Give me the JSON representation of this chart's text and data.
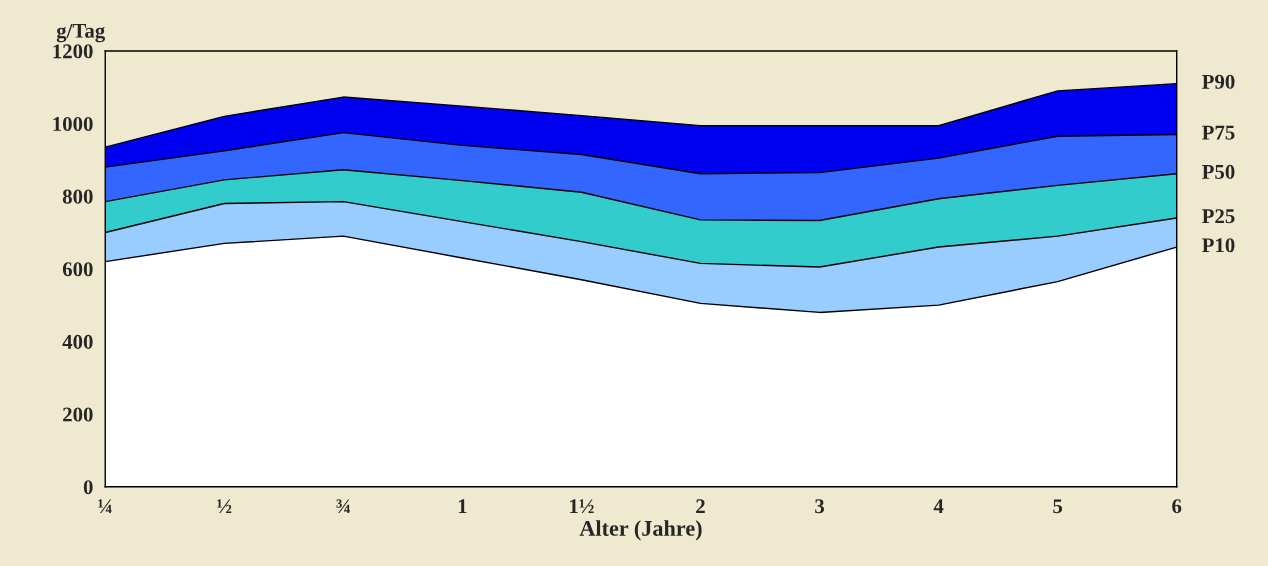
{
  "chart_data": {
    "type": "area",
    "ylabel": "g/Tag",
    "xlabel": "Alter (Jahre)",
    "categories": [
      "¼",
      "½",
      "¾",
      "1",
      "1½",
      "2",
      "3",
      "4",
      "5",
      "6"
    ],
    "ylim": [
      0,
      1200
    ],
    "yticks": [
      0,
      200,
      400,
      600,
      800,
      1000,
      1200
    ],
    "series": [
      {
        "name": "P90",
        "color": "#0000f0",
        "values": [
          935,
          1020,
          1073,
          1048,
          1022,
          994,
          994,
          994,
          1090,
          1110
        ]
      },
      {
        "name": "P75",
        "color": "#3366ff",
        "values": [
          880,
          925,
          975,
          940,
          915,
          862,
          865,
          905,
          965,
          970
        ]
      },
      {
        "name": "P50",
        "color": "#33cccc",
        "values": [
          785,
          845,
          873,
          843,
          811,
          735,
          733,
          793,
          830,
          862
        ]
      },
      {
        "name": "P25",
        "color": "#99ccff",
        "values": [
          700,
          780,
          785,
          730,
          675,
          615,
          605,
          660,
          690,
          740
        ]
      },
      {
        "name": "P10",
        "color": "#ffffff",
        "values": [
          620,
          670,
          690,
          630,
          570,
          505,
          480,
          500,
          565,
          660
        ]
      }
    ]
  }
}
